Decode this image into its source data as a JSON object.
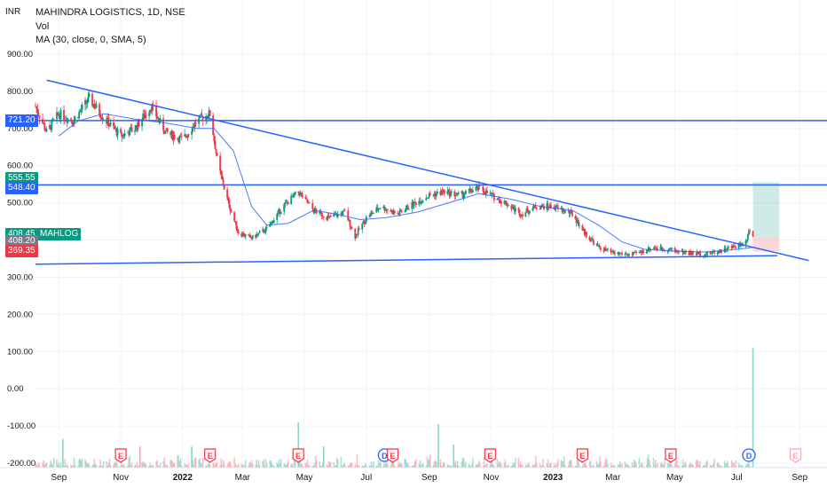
{
  "header": {
    "currency": "INR",
    "title": "MAHINDRA LOGISTICS, 1D, NSE",
    "indicator_vol": "Vol",
    "indicator_ma": "MA (30, close, 0, SMA, 5)"
  },
  "badges": [
    {
      "label": "721.20",
      "value": 721.2,
      "color": "#2962ff"
    },
    {
      "label": "555.55",
      "value": 555.55,
      "color": "#089981"
    },
    {
      "label": "548.40",
      "value": 548.4,
      "color": "#2962ff"
    },
    {
      "label": "408.45",
      "value": 408.45,
      "color": "#089981",
      "extra": "MAHLOG"
    },
    {
      "label": "408.20",
      "value": 408.2,
      "color": "#787b86"
    },
    {
      "label": "369.35",
      "value": 369.35,
      "color": "#f23645"
    }
  ],
  "events": [
    {
      "x": "2021-11-01",
      "label": "E",
      "kind": "earnings"
    },
    {
      "x": "2022-01-28",
      "label": "E",
      "kind": "earnings"
    },
    {
      "x": "2022-04-25",
      "label": "E",
      "kind": "earnings"
    },
    {
      "x": "2022-07-19",
      "label": "D",
      "kind": "dividend"
    },
    {
      "x": "2022-07-27",
      "label": "E",
      "kind": "earnings"
    },
    {
      "x": "2022-10-31",
      "label": "E",
      "kind": "earnings"
    },
    {
      "x": "2023-01-30",
      "label": "E",
      "kind": "earnings"
    },
    {
      "x": "2023-04-27",
      "label": "E",
      "kind": "earnings"
    },
    {
      "x": "2023-07-13",
      "label": "D",
      "kind": "dividend"
    },
    {
      "x": "2023-08-28",
      "label": "E",
      "kind": "earnings"
    }
  ],
  "chart_data": {
    "type": "line",
    "yaxis": {
      "min": -200,
      "max": 900,
      "ticks": [
        900,
        800,
        700,
        600,
        500,
        400,
        300,
        200,
        100,
        0,
        -100,
        -200
      ],
      "tick_labels": [
        "900.00",
        "800.00",
        "700.00",
        "600.00",
        "500.00",
        "400.00",
        "300.00",
        "200.00",
        "100.00",
        "0.00",
        "-100.00",
        "-200.00"
      ]
    },
    "xaxis": {
      "start": "2021-08-09",
      "end": "2023-09-28",
      "ticks": [
        {
          "label": "Sep",
          "date": "2021-09-01",
          "bold": false
        },
        {
          "label": "Nov",
          "date": "2021-11-01",
          "bold": false
        },
        {
          "label": "2022",
          "date": "2022-01-01",
          "bold": true
        },
        {
          "label": "Mar",
          "date": "2022-03-01",
          "bold": false
        },
        {
          "label": "May",
          "date": "2022-05-01",
          "bold": false
        },
        {
          "label": "Jul",
          "date": "2022-07-01",
          "bold": false
        },
        {
          "label": "Sep",
          "date": "2022-09-01",
          "bold": false
        },
        {
          "label": "Nov",
          "date": "2022-11-01",
          "bold": false
        },
        {
          "label": "2023",
          "date": "2023-01-01",
          "bold": true
        },
        {
          "label": "Mar",
          "date": "2023-03-01",
          "bold": false
        },
        {
          "label": "May",
          "date": "2023-05-01",
          "bold": false
        },
        {
          "label": "Jul",
          "date": "2023-07-01",
          "bold": false
        },
        {
          "label": "Sep",
          "date": "2023-09-01",
          "bold": false
        }
      ]
    },
    "price_path": [
      [
        "2021-08-09",
        760
      ],
      [
        "2021-08-20",
        690
      ],
      [
        "2021-09-01",
        740
      ],
      [
        "2021-09-15",
        720
      ],
      [
        "2021-10-01",
        780
      ],
      [
        "2021-10-15",
        730
      ],
      [
        "2021-11-01",
        680
      ],
      [
        "2021-11-15",
        700
      ],
      [
        "2021-12-01",
        760
      ],
      [
        "2021-12-15",
        690
      ],
      [
        "2022-01-01",
        670
      ],
      [
        "2022-01-15",
        720
      ],
      [
        "2022-01-28",
        740
      ],
      [
        "2022-02-05",
        600
      ],
      [
        "2022-02-15",
        500
      ],
      [
        "2022-02-25",
        420
      ],
      [
        "2022-03-10",
        405
      ],
      [
        "2022-03-25",
        430
      ],
      [
        "2022-04-10",
        490
      ],
      [
        "2022-04-25",
        530
      ],
      [
        "2022-05-10",
        480
      ],
      [
        "2022-05-25",
        460
      ],
      [
        "2022-06-10",
        475
      ],
      [
        "2022-06-20",
        410
      ],
      [
        "2022-07-01",
        460
      ],
      [
        "2022-07-15",
        490
      ],
      [
        "2022-08-01",
        470
      ],
      [
        "2022-08-15",
        495
      ],
      [
        "2022-09-01",
        520
      ],
      [
        "2022-09-15",
        530
      ],
      [
        "2022-10-01",
        520
      ],
      [
        "2022-10-20",
        540
      ],
      [
        "2022-11-01",
        520
      ],
      [
        "2022-11-15",
        500
      ],
      [
        "2022-12-01",
        470
      ],
      [
        "2022-12-15",
        490
      ],
      [
        "2023-01-01",
        490
      ],
      [
        "2023-01-20",
        470
      ],
      [
        "2023-02-01",
        420
      ],
      [
        "2023-02-15",
        380
      ],
      [
        "2023-03-01",
        365
      ],
      [
        "2023-03-20",
        360
      ],
      [
        "2023-04-10",
        380
      ],
      [
        "2023-04-25",
        375
      ],
      [
        "2023-05-15",
        365
      ],
      [
        "2023-06-01",
        362
      ],
      [
        "2023-06-20",
        375
      ],
      [
        "2023-07-01",
        385
      ],
      [
        "2023-07-10",
        395
      ],
      [
        "2023-07-13",
        430
      ],
      [
        "2023-07-17",
        408.45
      ]
    ],
    "series": [
      {
        "name": "MA (30, close, 0, SMA, 5)",
        "color": "#2962ff",
        "values": [
          [
            "2021-09-01",
            680
          ],
          [
            "2021-09-20",
            720
          ],
          [
            "2021-10-15",
            740
          ],
          [
            "2021-11-15",
            725
          ],
          [
            "2021-12-15",
            715
          ],
          [
            "2022-01-15",
            700
          ],
          [
            "2022-02-01",
            700
          ],
          [
            "2022-02-20",
            640
          ],
          [
            "2022-03-10",
            490
          ],
          [
            "2022-03-25",
            440
          ],
          [
            "2022-04-15",
            445
          ],
          [
            "2022-05-10",
            480
          ],
          [
            "2022-06-01",
            470
          ],
          [
            "2022-06-25",
            455
          ],
          [
            "2022-07-20",
            460
          ],
          [
            "2022-08-20",
            475
          ],
          [
            "2022-09-20",
            500
          ],
          [
            "2022-10-20",
            525
          ],
          [
            "2022-11-20",
            510
          ],
          [
            "2022-12-20",
            490
          ],
          [
            "2023-01-20",
            480
          ],
          [
            "2023-02-15",
            440
          ],
          [
            "2023-03-10",
            395
          ],
          [
            "2023-04-01",
            375
          ],
          [
            "2023-05-01",
            370
          ],
          [
            "2023-06-01",
            368
          ],
          [
            "2023-07-01",
            375
          ],
          [
            "2023-07-17",
            380
          ]
        ]
      }
    ],
    "trendlines": [
      {
        "from": [
          "2021-08-20",
          830
        ],
        "to": [
          "2023-09-10",
          345
        ],
        "color": "#2962ff"
      },
      {
        "from": [
          "2021-08-09",
          335
        ],
        "to": [
          "2023-08-10",
          358
        ],
        "color": "#2962ff"
      }
    ],
    "hlines": [
      {
        "value": 721.2,
        "color": "#2962ff"
      },
      {
        "value": 548.4,
        "color": "#2962ff"
      }
    ],
    "position": {
      "start": "2023-07-17",
      "end": "2023-08-12",
      "entry": 408.45,
      "target": 555.55,
      "stop": 369.35
    },
    "volume_spikes": [
      [
        "2021-09-05",
        -135
      ],
      [
        "2021-11-20",
        -155
      ],
      [
        "2022-01-10",
        -155
      ],
      [
        "2022-04-25",
        -90
      ],
      [
        "2022-05-20",
        -155
      ],
      [
        "2022-09-10",
        -95
      ],
      [
        "2022-09-25",
        -150
      ],
      [
        "2023-07-17",
        110
      ]
    ]
  }
}
